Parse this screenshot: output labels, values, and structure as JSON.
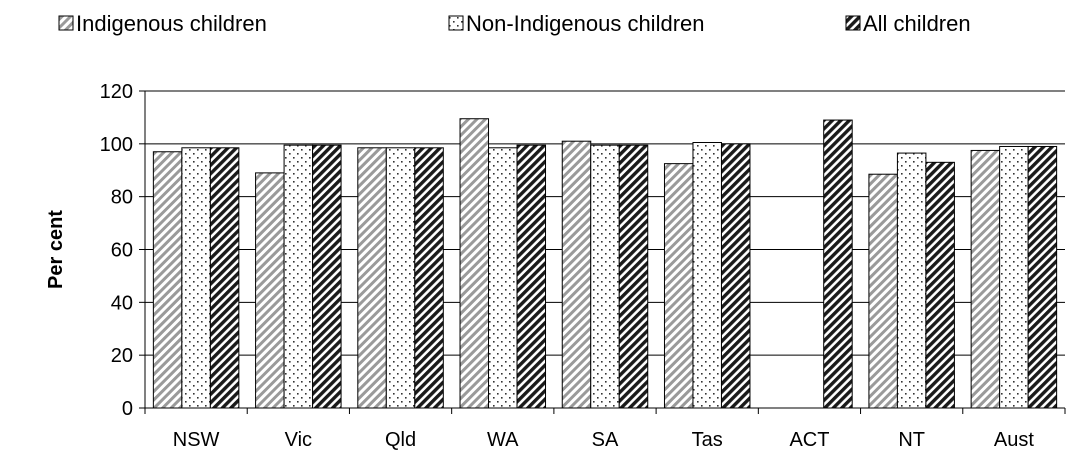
{
  "chart_data": {
    "type": "bar",
    "title": "",
    "xlabel": "",
    "ylabel": "Per cent",
    "ylim": [
      0,
      120
    ],
    "yticks": [
      0,
      20,
      40,
      60,
      80,
      100,
      120
    ],
    "grid": true,
    "legend_position": "top",
    "categories": [
      "NSW",
      "Vic",
      "Qld",
      "WA",
      "SA",
      "Tas",
      "ACT",
      "NT",
      "Aust"
    ],
    "series": [
      {
        "name": "Indigenous children",
        "pattern": "diagonal-light",
        "values": [
          97,
          89,
          98.5,
          109.5,
          101,
          92.5,
          null,
          88.5,
          97.5
        ]
      },
      {
        "name": "Non-Indigenous children",
        "pattern": "dots",
        "values": [
          98.5,
          99.5,
          98.5,
          98.5,
          99.5,
          100.5,
          null,
          96.5,
          99
        ]
      },
      {
        "name": "All children",
        "pattern": "diagonal-dark",
        "values": [
          98.5,
          99.5,
          98.5,
          99.5,
          99.5,
          100,
          109,
          93,
          99
        ]
      }
    ]
  }
}
